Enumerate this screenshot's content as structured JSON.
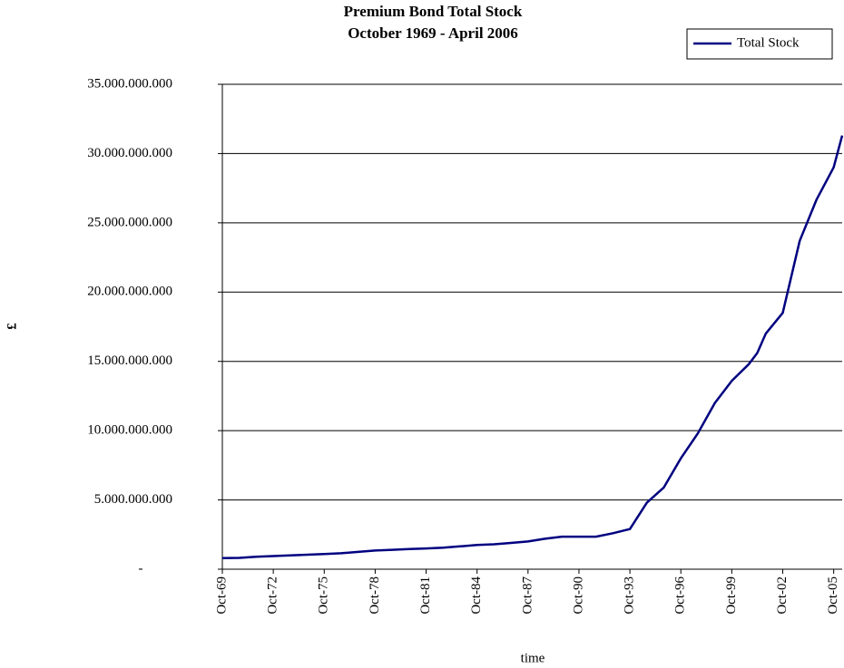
{
  "chart_data": {
    "type": "line",
    "title": "Premium Bond Total Stock",
    "subtitle": "October 1969 - April 2006",
    "x_label": "time",
    "y_label": "£",
    "legend": "top-right",
    "grid": true,
    "x": [
      1969.75,
      1970.75,
      1971.75,
      1972.75,
      1973.75,
      1974.75,
      1975.75,
      1976.75,
      1977.75,
      1978.75,
      1979.75,
      1980.75,
      1981.75,
      1982.75,
      1983.75,
      1984.75,
      1985.75,
      1986.75,
      1987.75,
      1988.75,
      1989.75,
      1990.75,
      1991.75,
      1992.75,
      1993.75,
      1994.75,
      1995.75,
      1996.75,
      1997.75,
      1998.75,
      1999.75,
      2000.75,
      2001.25,
      2001.75,
      2002.75,
      2003.75,
      2004.75,
      2005.75,
      2006.25
    ],
    "series": [
      {
        "name": "Total Stock",
        "color": "#000080",
        "values": [
          800000000,
          820000000,
          900000000,
          950000000,
          1000000000,
          1050000000,
          1100000000,
          1150000000,
          1250000000,
          1350000000,
          1400000000,
          1450000000,
          1500000000,
          1550000000,
          1650000000,
          1750000000,
          1800000000,
          1900000000,
          2000000000,
          2200000000,
          2350000000,
          2350000000,
          2350000000,
          2600000000,
          2900000000,
          4800000000,
          5900000000,
          8000000000,
          9800000000,
          12000000000,
          13600000000,
          14800000000,
          15600000000,
          17000000000,
          18500000000,
          23700000000,
          26700000000,
          29000000000,
          31300000000
        ]
      }
    ],
    "xlim": [
      1969.75,
      2006.25
    ],
    "xticks": [
      {
        "value": 1969.75,
        "label": "Oct-69"
      },
      {
        "value": 1972.75,
        "label": "Oct-72"
      },
      {
        "value": 1975.75,
        "label": "Oct-75"
      },
      {
        "value": 1978.75,
        "label": "Oct-78"
      },
      {
        "value": 1981.75,
        "label": "Oct-81"
      },
      {
        "value": 1984.75,
        "label": "Oct-84"
      },
      {
        "value": 1987.75,
        "label": "Oct-87"
      },
      {
        "value": 1990.75,
        "label": "Oct-90"
      },
      {
        "value": 1993.75,
        "label": "Oct-93"
      },
      {
        "value": 1996.75,
        "label": "Oct-96"
      },
      {
        "value": 1999.75,
        "label": "Oct-99"
      },
      {
        "value": 2002.75,
        "label": "Oct-02"
      },
      {
        "value": 2005.75,
        "label": "Oct-05"
      }
    ],
    "ylim": [
      0,
      35000000000
    ],
    "yticks": [
      {
        "value": 0,
        "label": "-"
      },
      {
        "value": 5000000000,
        "label": "5.000.000.000"
      },
      {
        "value": 10000000000,
        "label": "10.000.000.000"
      },
      {
        "value": 15000000000,
        "label": "15.000.000.000"
      },
      {
        "value": 20000000000,
        "label": "20.000.000.000"
      },
      {
        "value": 25000000000,
        "label": "25.000.000.000"
      },
      {
        "value": 30000000000,
        "label": "30.000.000.000"
      },
      {
        "value": 35000000000,
        "label": "35.000.000.000"
      }
    ]
  }
}
